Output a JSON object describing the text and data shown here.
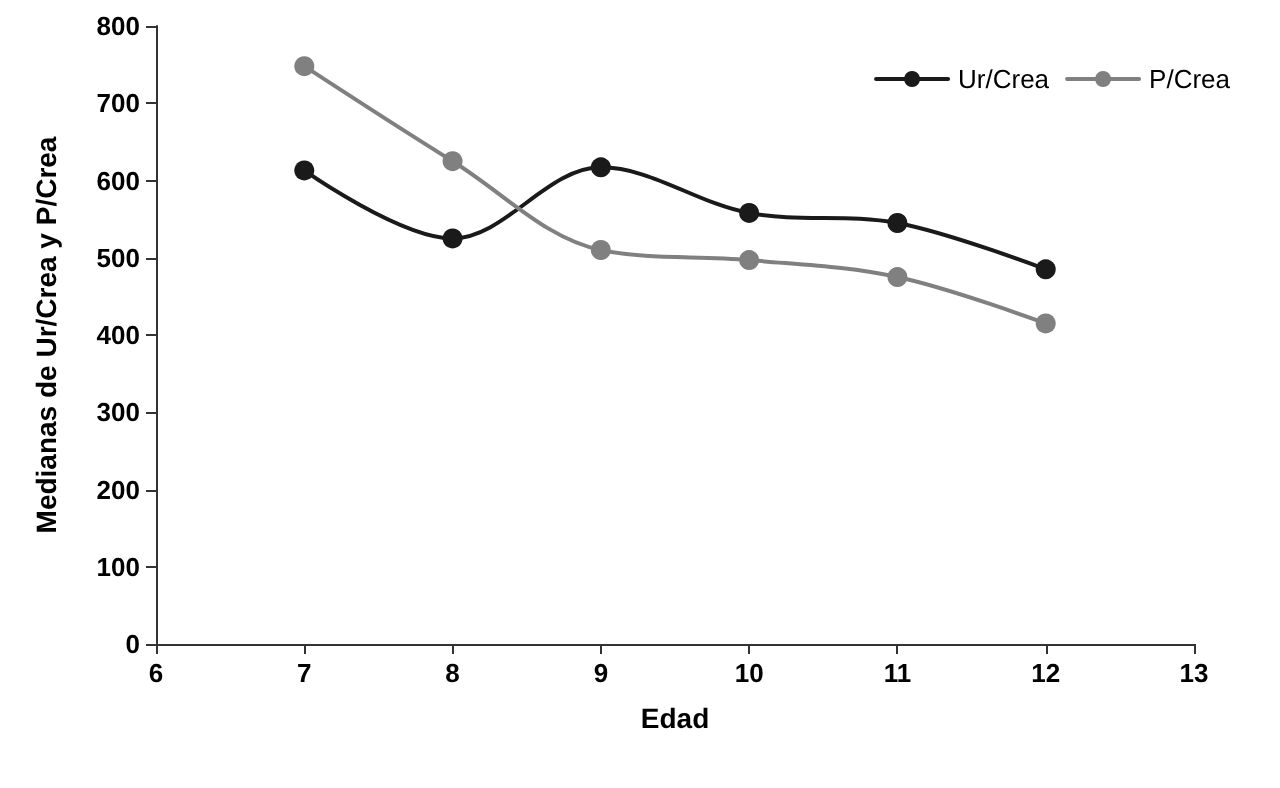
{
  "chart_data": {
    "type": "line",
    "xlabel": "Edad",
    "ylabel": "Medianas de Ur/Crea y P/Crea",
    "x": [
      7,
      8,
      9,
      10,
      11,
      12
    ],
    "series": [
      {
        "name": "Ur/Crea",
        "color": "#1a1a1a",
        "values": [
          613,
          525,
          617,
          558,
          545,
          485
        ]
      },
      {
        "name": "P/Crea",
        "color": "#808080",
        "values": [
          748,
          625,
          510,
          497,
          475,
          415
        ]
      }
    ],
    "xlim": [
      6,
      13
    ],
    "xticks": [
      6,
      7,
      8,
      9,
      10,
      11,
      12,
      13
    ],
    "ylim": [
      0,
      800
    ],
    "yticks": [
      0,
      100,
      200,
      300,
      400,
      500,
      600,
      700,
      800
    ],
    "grid": false,
    "legend": "top right",
    "marker": "circle",
    "line_style": "solid"
  }
}
